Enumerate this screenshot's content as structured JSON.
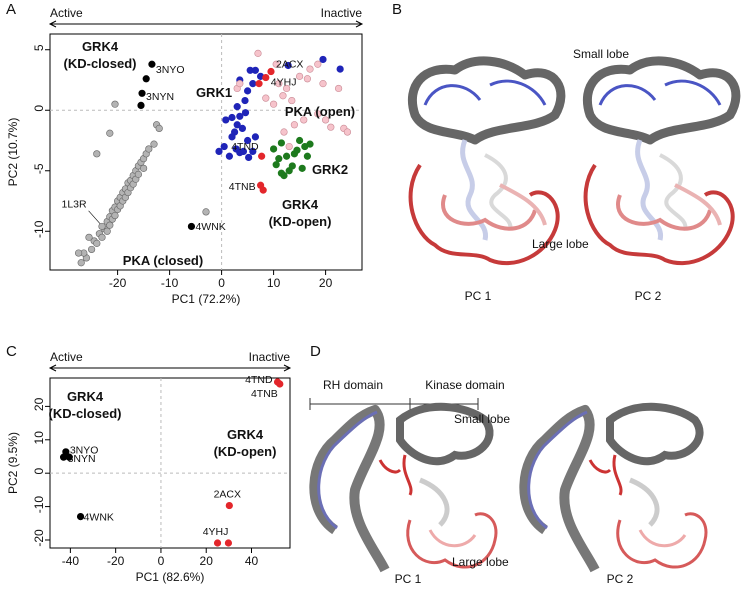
{
  "chart_data": [
    {
      "type": "scatter",
      "xlabel": "PC1 (72.2%)",
      "ylabel": "PC2 (10.7%)",
      "direction_labels": [
        "Active",
        "Inactive"
      ],
      "xlim": [
        -33,
        27
      ],
      "ylim": [
        -13.2,
        6.3
      ],
      "xticks": [
        -20,
        -10,
        0,
        10,
        20
      ],
      "yticks": [
        -10,
        -5,
        0,
        5
      ],
      "zero_lines": true,
      "series": [
        {
          "name": "PKA (closed)",
          "color": "#b3b3b3",
          "x": [
            -22.5,
            -25,
            -24.5,
            -24,
            -23.5,
            -23,
            -23,
            -22,
            -22,
            -21.5,
            -21.5,
            -21,
            -21,
            -20.5,
            -20.5,
            -20,
            -20,
            -19.5,
            -19.5,
            -19,
            -19,
            -18.5,
            -18.5,
            -18,
            -18,
            -17.5,
            -17.5,
            -17,
            -17,
            -16.5,
            -16.5,
            -16,
            -16,
            -15.5,
            -15,
            -15,
            -14.5,
            -14,
            -13,
            -26,
            -27,
            -26.5,
            -25.5,
            -12.5,
            -12,
            -20.5,
            -21.5,
            -24,
            -3,
            -27.5
          ],
          "y": [
            -9.8,
            -11.5,
            -10.8,
            -11,
            -10.2,
            -10.5,
            -9.6,
            -9.2,
            -10,
            -8.8,
            -9.5,
            -8.3,
            -9,
            -8,
            -8.7,
            -7.5,
            -8.2,
            -7.2,
            -7.9,
            -6.8,
            -7.5,
            -6.5,
            -7.2,
            -6,
            -6.8,
            -5.8,
            -6.4,
            -5.4,
            -6.1,
            -5,
            -5.7,
            -4.6,
            -5.3,
            -4.3,
            -4,
            -4.8,
            -3.6,
            -3.2,
            -2.8,
            -12.2,
            -12.6,
            -11.8,
            -10.5,
            -1.2,
            -1.5,
            0.5,
            -1.9,
            -3.6,
            -8.4,
            -11.8
          ],
          "labels": [
            "1L3R",
            null,
            null,
            null,
            null,
            null,
            null,
            null,
            null,
            null,
            null,
            null,
            null,
            null,
            null,
            null,
            null,
            null,
            null,
            null,
            null,
            null,
            null,
            null,
            null,
            null,
            null,
            null,
            null,
            null,
            null,
            null,
            null,
            null,
            null,
            null,
            null,
            null,
            null,
            null,
            null,
            null,
            null,
            null,
            null,
            null,
            null,
            null,
            null,
            null
          ]
        },
        {
          "name": "GRK1",
          "color": "#1f24b8",
          "x": [
            -0.5,
            0.5,
            1.5,
            2,
            2.5,
            3,
            3.5,
            4,
            5,
            2.8,
            3.5,
            4.2,
            5.2,
            6,
            6.5,
            4.5,
            3.5,
            5.5,
            6.5,
            7.5,
            6,
            5,
            4.6,
            3,
            2,
            0.8,
            12.8,
            19.5,
            22.8
          ],
          "y": [
            -3.4,
            -3,
            -3.8,
            -2.2,
            -1.8,
            -1.2,
            -0.5,
            -1.5,
            -2.5,
            -3.2,
            -3.5,
            -3.4,
            -3.9,
            -3.4,
            -2.2,
            0.8,
            2.5,
            3.3,
            3.3,
            2.8,
            2.2,
            1.6,
            -0.2,
            0.3,
            -0.6,
            -0.8,
            3.7,
            4.2,
            3.4
          ]
        },
        {
          "name": "PKA (open)",
          "color": "#f6c3cb",
          "x": [
            3,
            3.5,
            7,
            10.5,
            11,
            11.8,
            12.5,
            13.5,
            14,
            15.8,
            16.5,
            17,
            18.5,
            18.5,
            19.5,
            21,
            22.5,
            23.5,
            24.2,
            12,
            10,
            8.5,
            15,
            20,
            13
          ],
          "y": [
            1.8,
            2.2,
            4.7,
            3.8,
            2.2,
            1.2,
            1.8,
            0.8,
            -1.2,
            -0.8,
            2.6,
            3.4,
            3.8,
            -0.3,
            2.2,
            -1.4,
            1.8,
            -1.5,
            -1.8,
            -1.8,
            0.5,
            1,
            2.8,
            -0.8,
            -3
          ]
        },
        {
          "name": "GRK2",
          "color": "#1d7a1d",
          "x": [
            10,
            11,
            11.5,
            12.5,
            13,
            13.6,
            14,
            14.5,
            15,
            15.5,
            16,
            16.5,
            12,
            11.5,
            17,
            10.5
          ],
          "y": [
            -3.2,
            -4,
            -2.7,
            -3.8,
            -5,
            -4.6,
            -3.6,
            -3.3,
            -2.5,
            -4.8,
            -3,
            -3.8,
            -5.4,
            -5.2,
            -2.8,
            -4.5
          ]
        },
        {
          "name": "GRK4\n(KD-open)",
          "color": "#e3262b",
          "x": [
            9.5,
            8.5,
            7.2,
            7.7,
            7.5,
            8
          ],
          "y": [
            3.2,
            2.7,
            2.2,
            -3.8,
            -6.2,
            -6.6
          ],
          "labels": [
            "2ACX",
            "4YHJ",
            null,
            "4TND",
            "4TNB",
            null
          ]
        },
        {
          "name": "GRK4\n(KD-closed)",
          "color": "#000000",
          "x": [
            -13.4,
            -14.5,
            -15.3,
            -15.5,
            -5.8
          ],
          "y": [
            3.8,
            2.6,
            1.4,
            0.4,
            -9.6
          ],
          "labels": [
            "3NYO",
            null,
            "3NYN",
            null,
            "4WNK"
          ]
        }
      ]
    },
    {
      "type": "scatter",
      "xlabel": "PC1 (82.6%)",
      "ylabel": "PC2 (9.5%)",
      "direction_labels": [
        "Active",
        "Inactive"
      ],
      "xlim": [
        -49,
        57
      ],
      "ylim": [
        -22.4,
        28.5
      ],
      "xticks": [
        -40,
        -20,
        0,
        20,
        40
      ],
      "yticks": [
        -20,
        -10,
        0,
        10,
        20
      ],
      "zero_lines": true,
      "series": [
        {
          "name": "GRK4\n(KD-closed)",
          "color": "#000000",
          "x": [
            -42,
            -43,
            -40.5,
            -35.5
          ],
          "y": [
            6.4,
            4.8,
            4.8,
            -13
          ],
          "labels": [
            "3NYO",
            "3NYN",
            null,
            "4WNK"
          ]
        },
        {
          "name": "GRK4\n(KD-open)",
          "color": "#e3262b",
          "x": [
            51.5,
            52.5,
            30.2,
            25,
            29.8
          ],
          "y": [
            27.3,
            26.7,
            -9.7,
            -20.9,
            -20.9
          ],
          "labels": [
            "4TND",
            "4TNB",
            "2ACX",
            "4YHJ",
            null
          ]
        }
      ]
    }
  ],
  "figure": {
    "panels": [
      "A",
      "B",
      "C",
      "D"
    ],
    "b": {
      "small_lobe": "Small lobe",
      "large_lobe": "Large lobe",
      "pc1": "PC 1",
      "pc2": "PC 2"
    },
    "d": {
      "rh": "RH domain",
      "kinase": "Kinase domain",
      "small_lobe": "Small lobe",
      "large_lobe": "Large lobe",
      "pc1": "PC 1",
      "pc2": "PC 2"
    }
  }
}
